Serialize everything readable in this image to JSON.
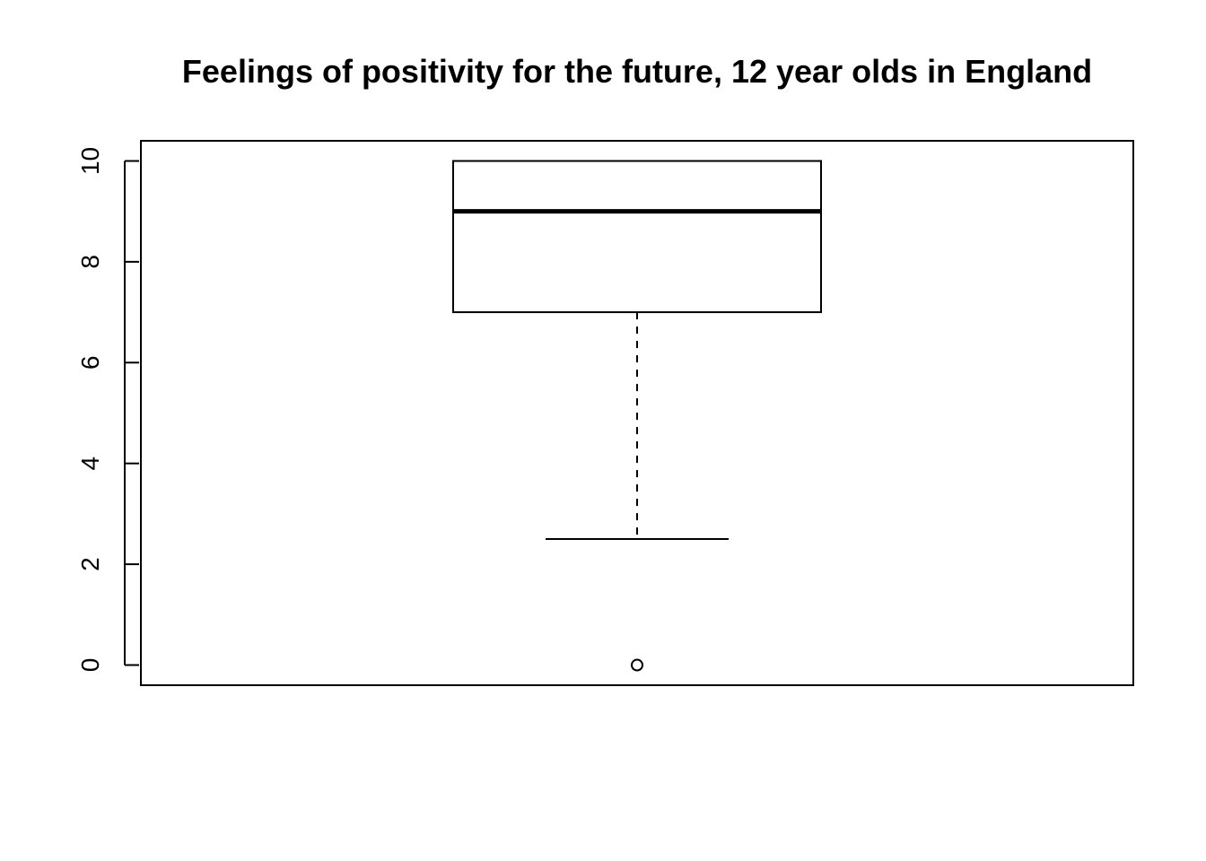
{
  "chart_data": {
    "type": "boxplot",
    "title": "Feelings of positivity for the future, 12 year olds in England",
    "xlabel": "",
    "ylabel": "",
    "ylim": [
      -0.4,
      10.4
    ],
    "yticks": [
      0,
      2,
      4,
      6,
      8,
      10
    ],
    "ytick_labels": [
      "0",
      "2",
      "4",
      "6",
      "8",
      "10"
    ],
    "grid": false,
    "legend": "none",
    "box": {
      "whisker_low": 2.5,
      "q1": 7,
      "median": 9,
      "q3": 10,
      "whisker_high": 10,
      "outliers": [
        0
      ]
    },
    "colors": {
      "stroke": "#000000",
      "fill": "#ffffff"
    }
  }
}
